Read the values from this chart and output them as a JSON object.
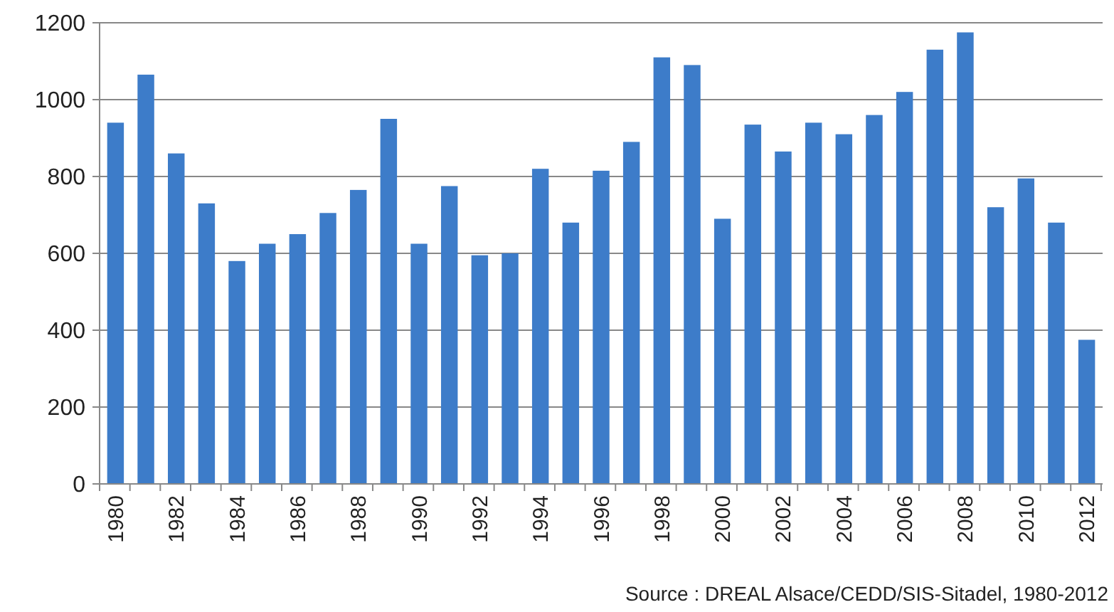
{
  "chart_data": {
    "type": "bar",
    "categories": [
      "1980",
      null,
      "1982",
      null,
      "1984",
      null,
      "1986",
      null,
      "1988",
      null,
      "1990",
      null,
      "1992",
      null,
      "1994",
      null,
      "1996",
      null,
      "1998",
      null,
      "2000",
      null,
      "2002",
      null,
      "2004",
      null,
      "2006",
      null,
      "2008",
      null,
      "2010",
      null,
      "2012"
    ],
    "values": [
      940,
      1065,
      860,
      730,
      580,
      625,
      650,
      705,
      765,
      950,
      625,
      775,
      595,
      600,
      820,
      680,
      815,
      890,
      1110,
      1090,
      690,
      935,
      865,
      940,
      910,
      960,
      1020,
      1130,
      1175,
      720,
      795,
      680,
      375
    ],
    "color": "#3d7cc9",
    "ylim": [
      0,
      1200
    ],
    "yticks": [
      0,
      200,
      400,
      600,
      800,
      1000,
      1200
    ],
    "grid": "y",
    "annotations": [
      "Source : DREAL Alsace/CEDD/SIS-Sitadel, 1980-2012"
    ]
  }
}
